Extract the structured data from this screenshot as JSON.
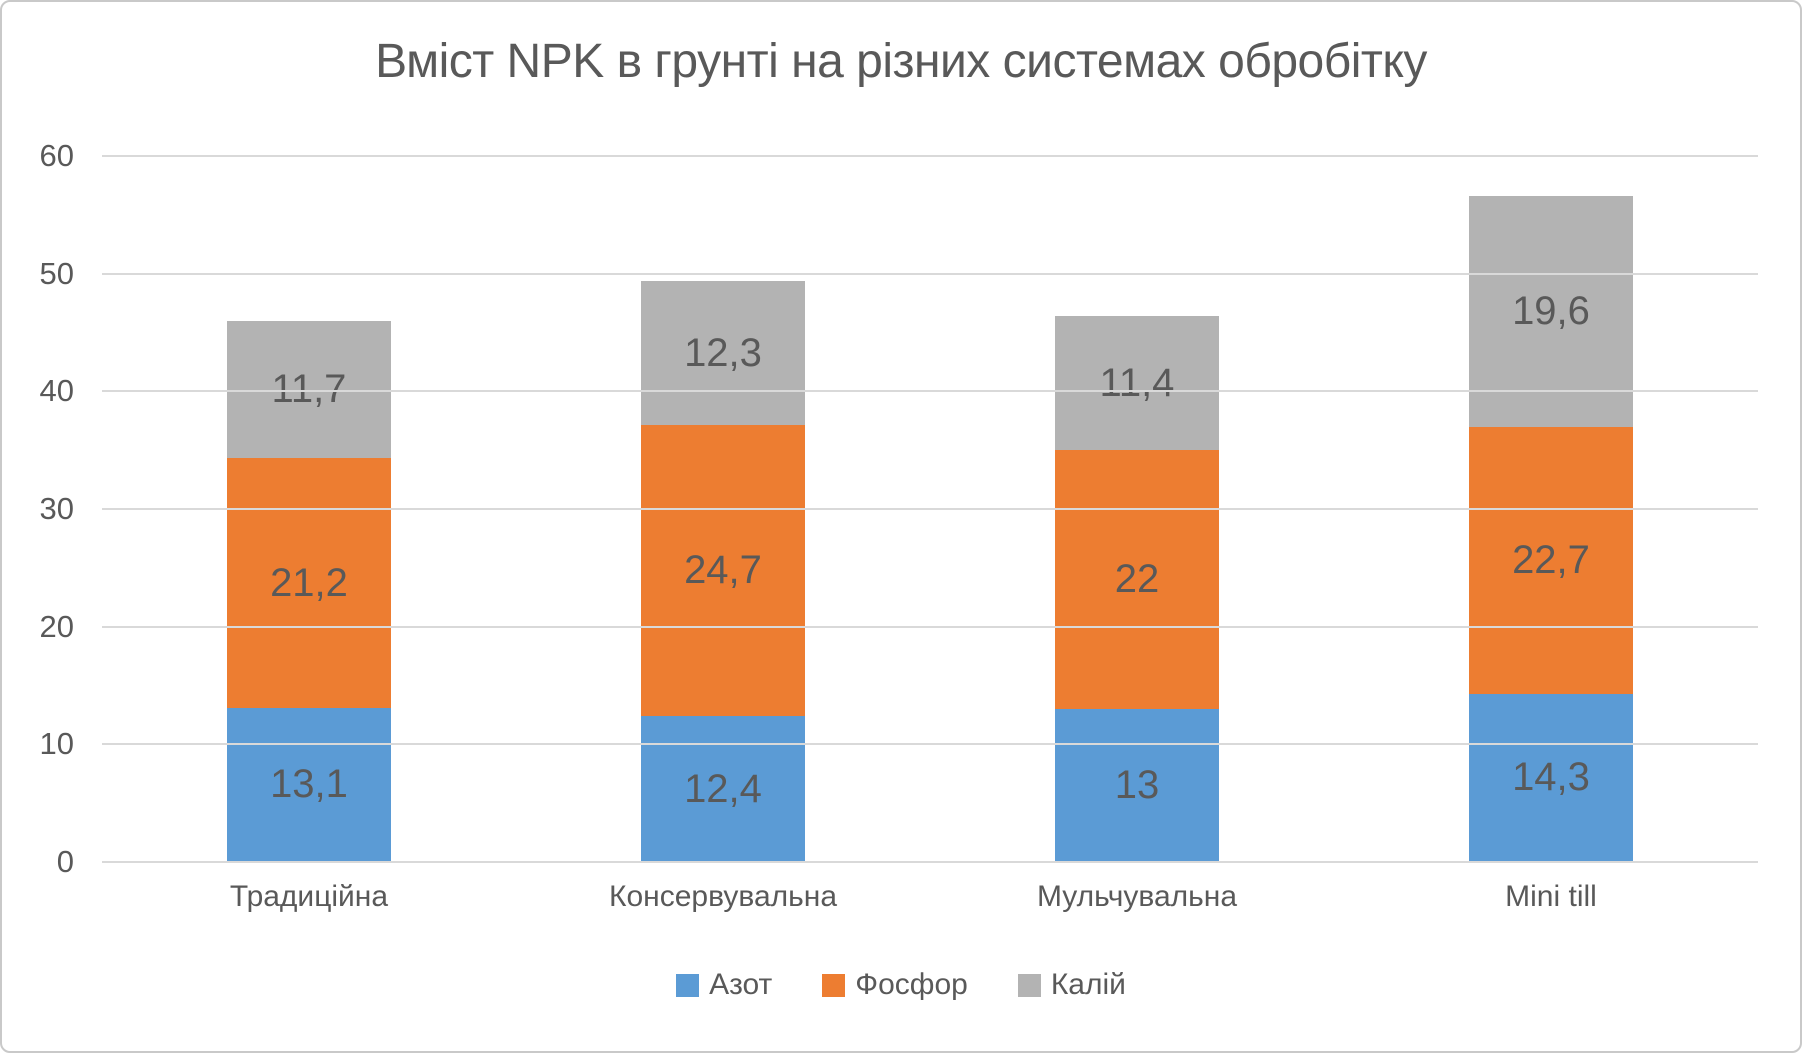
{
  "window": {
    "background_color": "#FFFFFF",
    "border_color": "#C9C9C9",
    "text_color": "#595959",
    "gridline_color": "#D9D9D9"
  },
  "chart_data": {
    "type": "bar",
    "stacked": true,
    "title": "Вміст NPK в грунті на різних системах обробітку",
    "categories": [
      "Традиційна",
      "Консервувальна",
      "Мульчувальна",
      "Mini till"
    ],
    "series": [
      {
        "name": "Азот",
        "color": "#5B9BD5",
        "values": [
          13.1,
          12.4,
          13.0,
          14.3
        ],
        "labels": [
          "13,1",
          "12,4",
          "13",
          "14,3"
        ]
      },
      {
        "name": "Фосфор",
        "color": "#ED7D31",
        "values": [
          21.2,
          24.7,
          22.0,
          22.7
        ],
        "labels": [
          "21,2",
          "24,7",
          "22",
          "22,7"
        ]
      },
      {
        "name": "Калій",
        "color": "#B3B3B3",
        "values": [
          11.7,
          12.3,
          11.4,
          19.6
        ],
        "labels": [
          "11,7",
          "12,3",
          "11,4",
          "19,6"
        ]
      }
    ],
    "totals": [
      46.0,
      49.4,
      46.4,
      56.6
    ],
    "xlabel": "",
    "ylabel": "",
    "ylim": [
      0,
      60
    ],
    "yticks": [
      0,
      10,
      20,
      30,
      40,
      50,
      60
    ],
    "grid": true,
    "legend_position": "bottom",
    "data_labels": "inside-center",
    "decimal_separator": ","
  }
}
